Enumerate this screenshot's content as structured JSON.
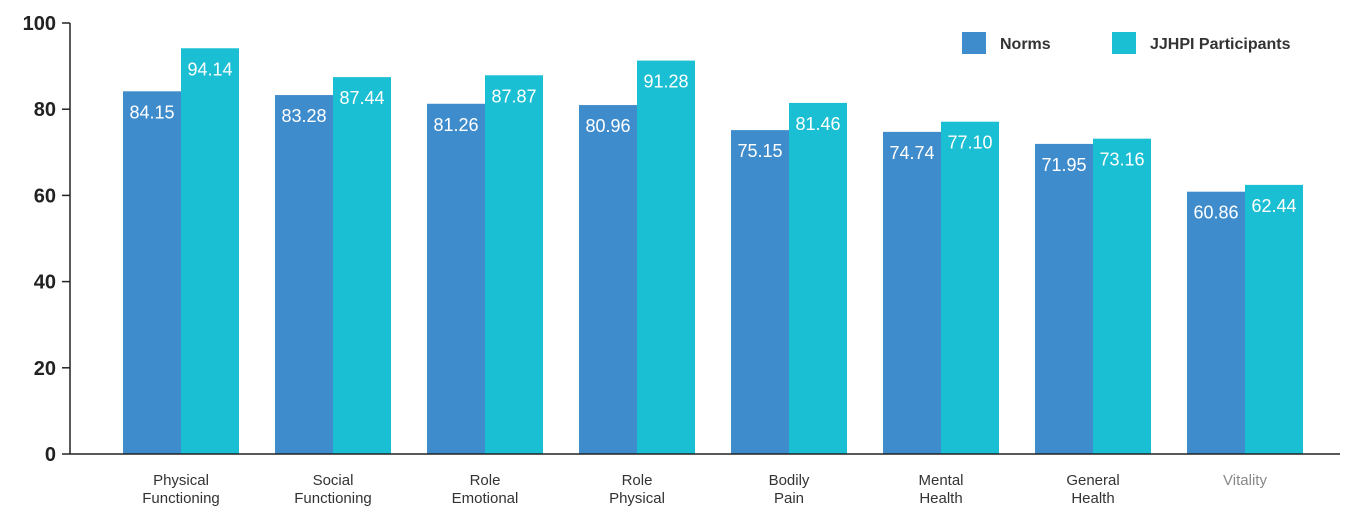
{
  "colors": {
    "norms": "#3f8ccd",
    "participants": "#1bbfd3",
    "axis": "#222222",
    "tick_text": "#222222",
    "category_text": "#333333",
    "category_text_muted": "#888888",
    "value_text": "#ffffff"
  },
  "chart_data": {
    "type": "bar",
    "title": "",
    "xlabel": "",
    "ylabel": "",
    "ylim": [
      0,
      100
    ],
    "yticks": [
      "0",
      "20",
      "40",
      "60",
      "80",
      "100"
    ],
    "grid": false,
    "legend_position": "top-right",
    "categories": [
      [
        "Physical",
        "Functioning"
      ],
      [
        "Social",
        "Functioning"
      ],
      [
        "Role",
        "Emotional"
      ],
      [
        "Role",
        "Physical"
      ],
      [
        "Bodily",
        "Pain"
      ],
      [
        "Mental",
        "Health"
      ],
      [
        "General",
        "Health"
      ],
      [
        "Vitality"
      ]
    ],
    "series": [
      {
        "name": "Norms",
        "color_key": "norms",
        "values": [
          84.15,
          83.28,
          81.26,
          80.96,
          75.15,
          74.74,
          71.95,
          60.86
        ],
        "labels": [
          "84.15",
          "83.28",
          "81.26",
          "80.96",
          "75.15",
          "74.74",
          "71.95",
          "60.86"
        ]
      },
      {
        "name": "JJHPI Participants",
        "color_key": "participants",
        "values": [
          94.14,
          87.44,
          87.87,
          91.28,
          81.46,
          77.1,
          73.16,
          62.44
        ],
        "labels": [
          "94.14",
          "87.44",
          "87.87",
          "91.28",
          "81.46",
          "77.10",
          "73.16",
          "62.44"
        ]
      }
    ]
  }
}
